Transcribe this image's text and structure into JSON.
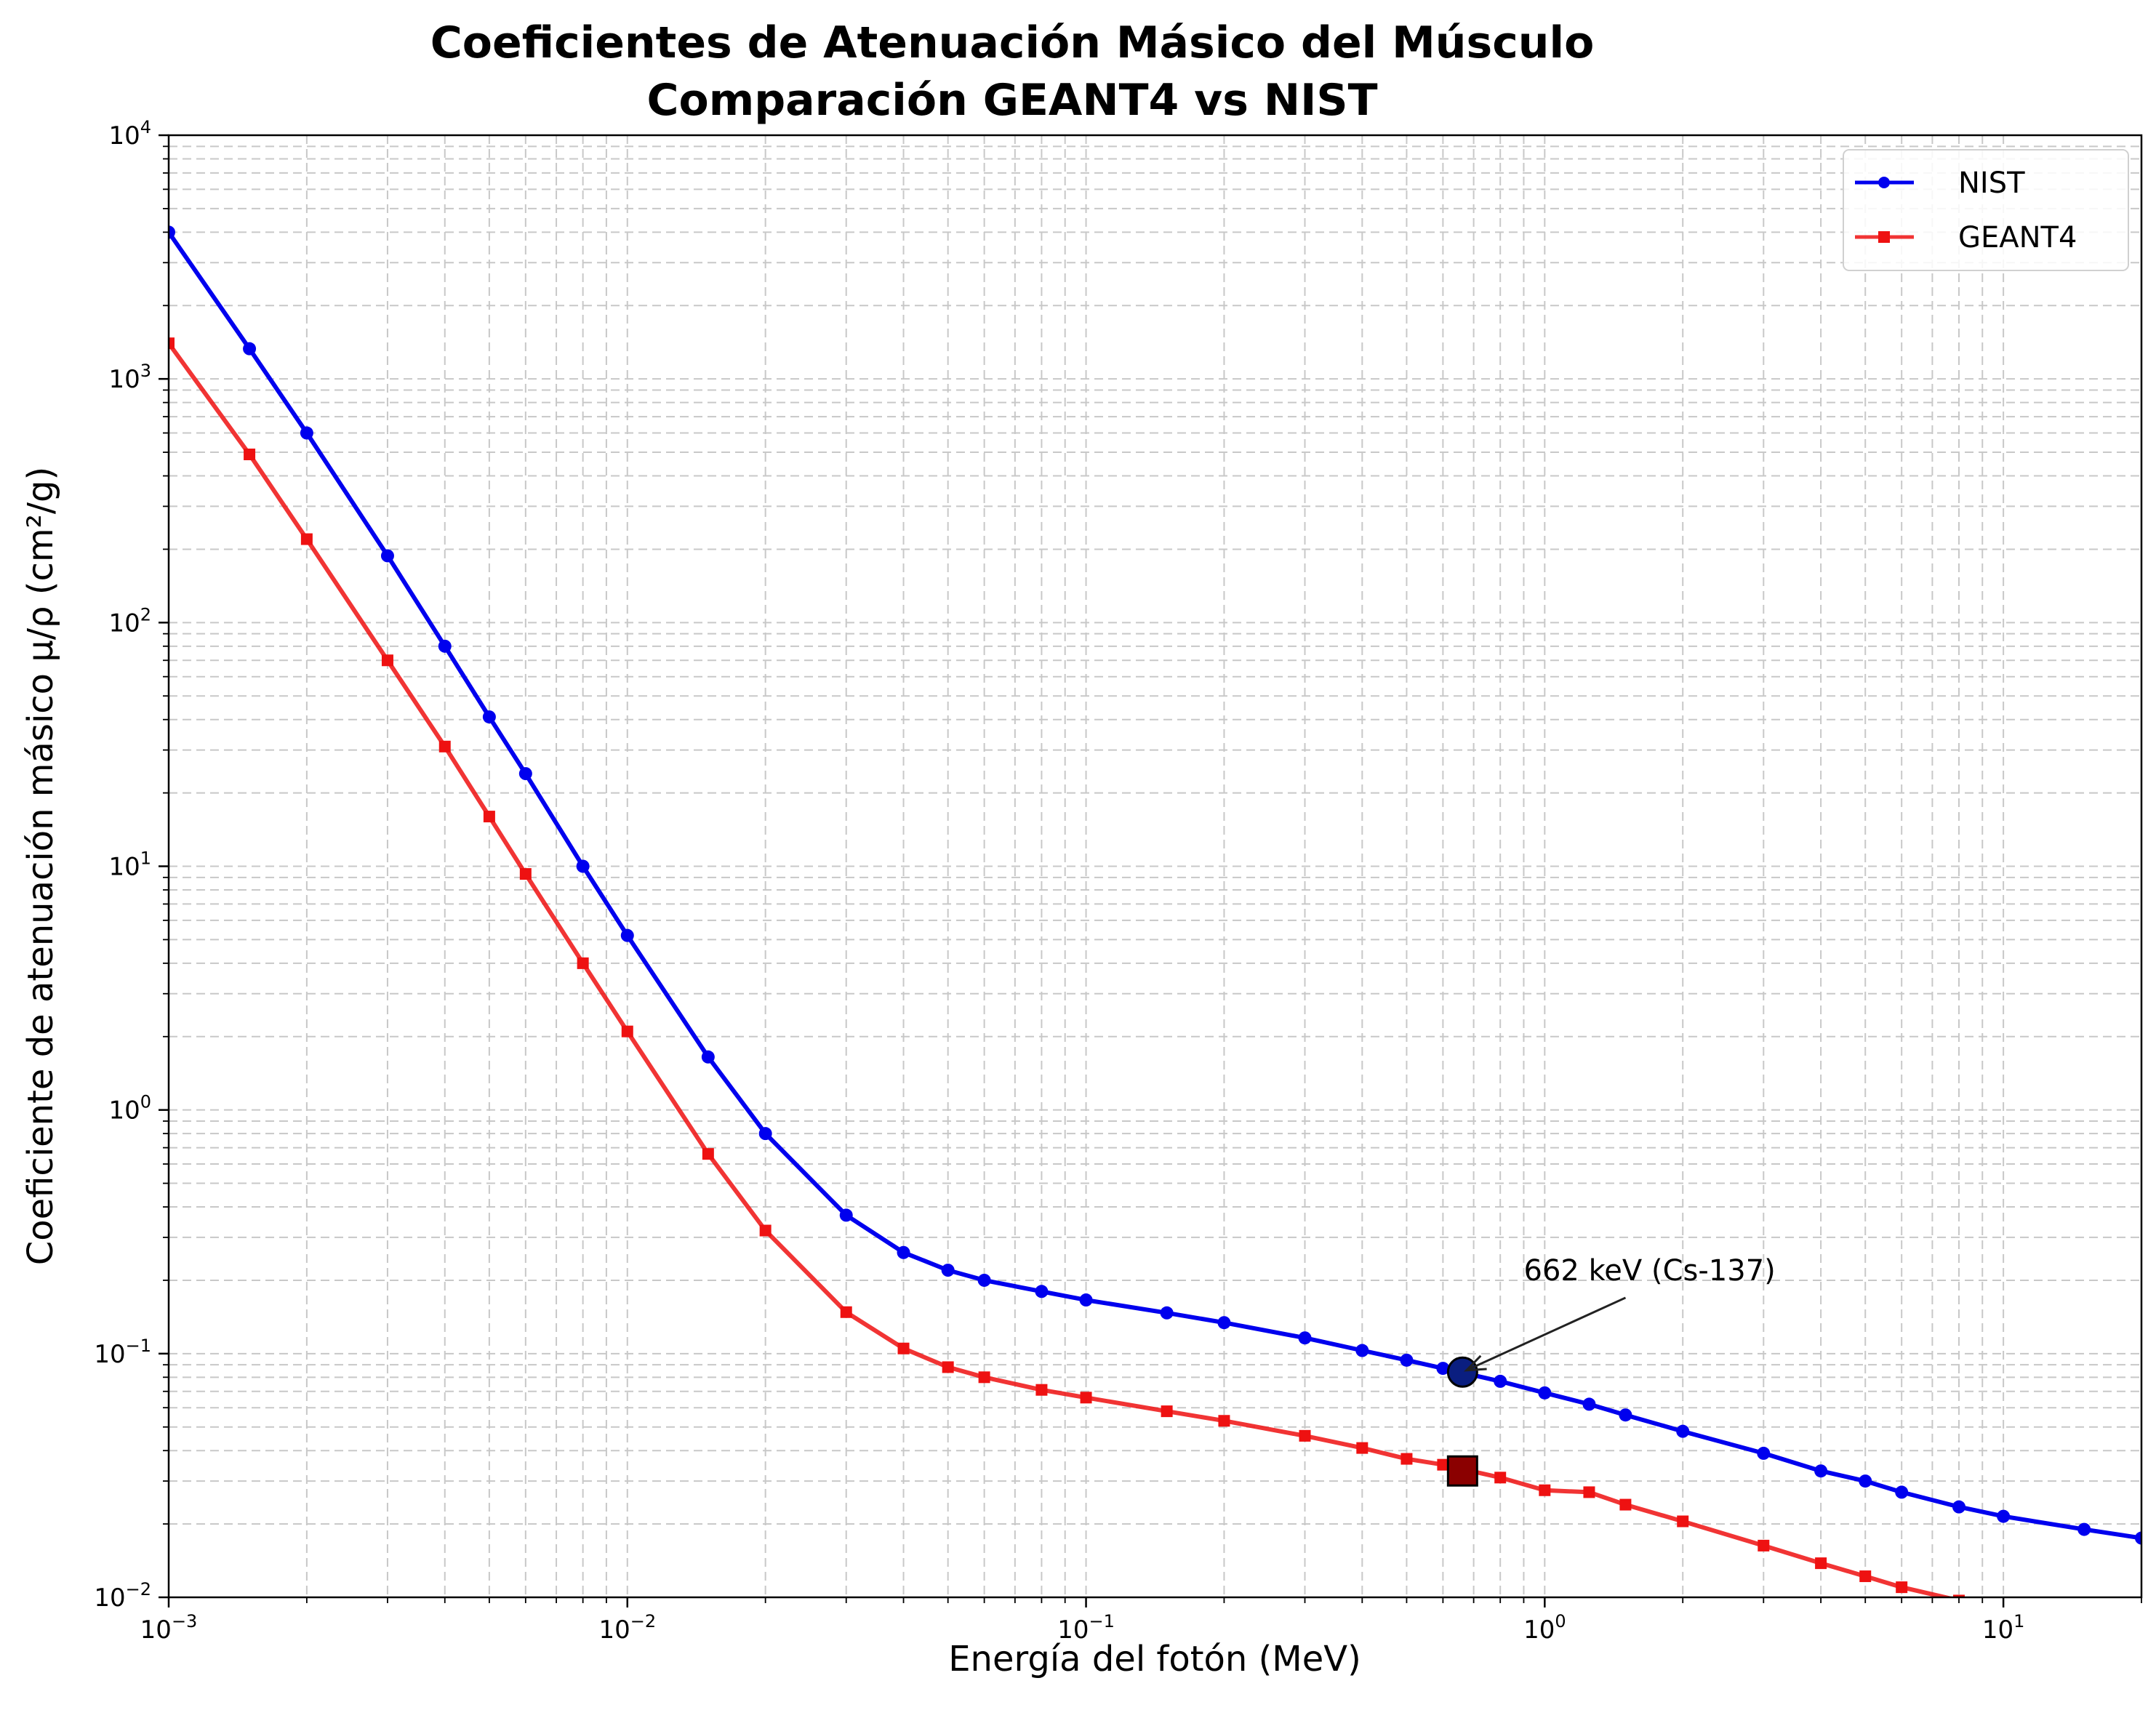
{
  "chart_data": {
    "type": "line",
    "title_line1": "Coeficientes de Atenuación Másico del Músculo",
    "title_line2": "Comparación GEANT4 vs NIST",
    "xlabel": "Energía del fotón (MeV)",
    "ylabel": "Coeficiente de atenuación másico μ/ρ (cm²/g)",
    "xscale": "log",
    "yscale": "log",
    "xlim": [
      0.001,
      20
    ],
    "ylim": [
      0.01,
      10000
    ],
    "grid": true,
    "legend_position": "top-right",
    "x_ticks": [
      {
        "value": 0.001,
        "base": "10",
        "exp": "−3"
      },
      {
        "value": 0.01,
        "base": "10",
        "exp": "−2"
      },
      {
        "value": 0.1,
        "base": "10",
        "exp": "−1"
      },
      {
        "value": 1,
        "base": "10",
        "exp": "0"
      },
      {
        "value": 10,
        "base": "10",
        "exp": "1"
      }
    ],
    "y_ticks": [
      {
        "value": 0.01,
        "base": "10",
        "exp": "−2"
      },
      {
        "value": 0.1,
        "base": "10",
        "exp": "−1"
      },
      {
        "value": 1,
        "base": "10",
        "exp": "0"
      },
      {
        "value": 10,
        "base": "10",
        "exp": "1"
      },
      {
        "value": 100,
        "base": "10",
        "exp": "2"
      },
      {
        "value": 1000,
        "base": "10",
        "exp": "3"
      },
      {
        "value": 10000,
        "base": "10",
        "exp": "4"
      }
    ],
    "series": [
      {
        "name": "NIST",
        "color": "#0000ee",
        "marker": "circle",
        "x": [
          0.001,
          0.0015,
          0.002,
          0.003,
          0.004,
          0.005,
          0.006,
          0.008,
          0.01,
          0.015,
          0.02,
          0.03,
          0.04,
          0.05,
          0.06,
          0.08,
          0.1,
          0.15,
          0.2,
          0.3,
          0.4,
          0.5,
          0.6,
          0.8,
          1.0,
          1.25,
          1.5,
          2.0,
          3.0,
          4.0,
          5.0,
          6.0,
          8.0,
          10.0,
          15.0,
          20.0
        ],
        "y": [
          4000,
          1330,
          600,
          188,
          80,
          41,
          24,
          10,
          5.2,
          1.65,
          0.8,
          0.37,
          0.26,
          0.22,
          0.2,
          0.18,
          0.166,
          0.147,
          0.134,
          0.116,
          0.103,
          0.094,
          0.087,
          0.077,
          0.069,
          0.062,
          0.056,
          0.048,
          0.039,
          0.033,
          0.03,
          0.027,
          0.0235,
          0.0215,
          0.019,
          0.0175
        ]
      },
      {
        "name": "GEANT4",
        "color": "#ee1111",
        "marker": "square",
        "x": [
          0.001,
          0.0015,
          0.002,
          0.003,
          0.004,
          0.005,
          0.006,
          0.008,
          0.01,
          0.015,
          0.02,
          0.03,
          0.04,
          0.05,
          0.06,
          0.08,
          0.1,
          0.15,
          0.2,
          0.3,
          0.4,
          0.5,
          0.6,
          0.8,
          1.0,
          1.25,
          1.5,
          2.0,
          3.0,
          4.0,
          5.0,
          6.0,
          8.0
        ],
        "y": [
          1400,
          490,
          220,
          70,
          31,
          16,
          9.3,
          4.0,
          2.1,
          0.66,
          0.32,
          0.148,
          0.105,
          0.088,
          0.08,
          0.071,
          0.066,
          0.058,
          0.053,
          0.046,
          0.041,
          0.037,
          0.035,
          0.031,
          0.0275,
          0.027,
          0.024,
          0.0205,
          0.0163,
          0.0138,
          0.0122,
          0.011,
          0.0097
        ]
      }
    ],
    "highlights": [
      {
        "series": "NIST",
        "x": 0.662,
        "y": 0.084,
        "marker": "circle",
        "color": "#0a1e80"
      },
      {
        "series": "GEANT4",
        "x": 0.662,
        "y": 0.033,
        "marker": "square",
        "color": "#8b0000"
      }
    ],
    "annotation": {
      "text": "662 keV (Cs-137)",
      "target_x": 0.662,
      "target_y": 0.084,
      "text_x": 0.9,
      "text_y": 0.2
    }
  }
}
